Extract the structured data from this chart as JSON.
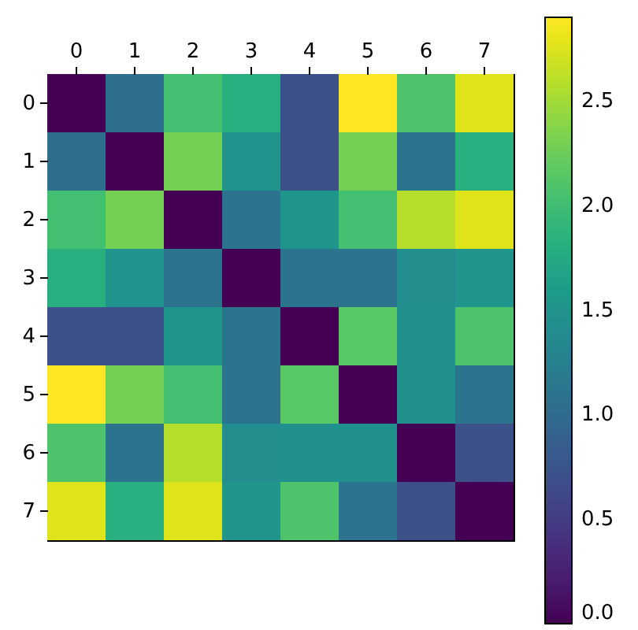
{
  "chart_data": {
    "type": "heatmap",
    "categories": [
      "0",
      "1",
      "2",
      "3",
      "4",
      "5",
      "6",
      "7"
    ],
    "y_categories": [
      "0",
      "1",
      "2",
      "3",
      "4",
      "5",
      "6",
      "7"
    ],
    "cells": [
      [
        0,
        1.05,
        2.03,
        1.83,
        0.7,
        2.9,
        2.09,
        2.76
      ],
      [
        1.05,
        0,
        2.29,
        1.48,
        0.7,
        2.29,
        1.1,
        1.82
      ],
      [
        2.03,
        2.29,
        0,
        1.1,
        1.51,
        2.03,
        2.58,
        2.76
      ],
      [
        1.83,
        1.48,
        1.1,
        0,
        1.1,
        1.1,
        1.42,
        1.51
      ],
      [
        0.7,
        0.7,
        1.51,
        1.1,
        0,
        2.15,
        1.45,
        2.09
      ],
      [
        2.9,
        2.29,
        2.03,
        1.1,
        2.15,
        0,
        1.45,
        1.1
      ],
      [
        2.09,
        1.1,
        2.58,
        1.42,
        1.45,
        1.45,
        0,
        0.7
      ],
      [
        2.76,
        1.82,
        2.76,
        1.51,
        2.09,
        1.1,
        0.7,
        0
      ]
    ],
    "clim": [
      0,
      2.9
    ],
    "cticks": [
      {
        "value": 0,
        "label": "0.0"
      },
      {
        "value": 0.5,
        "label": "0.5"
      },
      {
        "value": 1.0,
        "label": "1.0"
      },
      {
        "value": 1.5,
        "label": "1.5"
      },
      {
        "value": 2.0,
        "label": "2.0"
      },
      {
        "value": 2.5,
        "label": "2.5"
      }
    ]
  }
}
